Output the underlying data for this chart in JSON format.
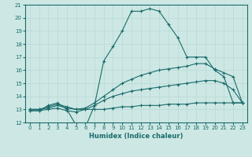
{
  "xlabel": "Humidex (Indice chaleur)",
  "xlim": [
    -0.5,
    23.5
  ],
  "ylim": [
    12,
    21
  ],
  "yticks": [
    12,
    13,
    14,
    15,
    16,
    17,
    18,
    19,
    20,
    21
  ],
  "xticks": [
    0,
    1,
    2,
    3,
    4,
    5,
    6,
    7,
    8,
    9,
    10,
    11,
    12,
    13,
    14,
    15,
    16,
    17,
    18,
    19,
    20,
    21,
    22,
    23
  ],
  "bg_color": "#cde8e4",
  "line_color": "#1a6b6b",
  "grid_color": "#b8d8d4",
  "lines": [
    {
      "x": [
        0,
        1,
        2,
        3,
        4,
        5,
        6,
        7,
        8,
        9,
        10,
        11,
        12,
        13,
        14,
        15,
        16,
        17,
        18,
        19,
        20,
        21,
        22,
        23
      ],
      "y": [
        12.9,
        12.9,
        13.3,
        13.5,
        13.0,
        11.8,
        11.6,
        13.3,
        16.7,
        17.8,
        19.0,
        20.5,
        20.5,
        20.7,
        20.5,
        19.5,
        18.5,
        17.0,
        17.0,
        17.0,
        16.0,
        15.5,
        13.5,
        13.5
      ],
      "marker": "+"
    },
    {
      "x": [
        0,
        1,
        2,
        3,
        4,
        5,
        6,
        7,
        8,
        9,
        10,
        11,
        12,
        13,
        14,
        15,
        16,
        17,
        18,
        19,
        20,
        21,
        22,
        23
      ],
      "y": [
        13.0,
        13.0,
        13.2,
        13.4,
        13.2,
        13.0,
        13.1,
        13.5,
        14.0,
        14.5,
        15.0,
        15.3,
        15.6,
        15.8,
        16.0,
        16.1,
        16.2,
        16.3,
        16.5,
        16.5,
        16.1,
        15.8,
        15.5,
        13.5
      ],
      "marker": "+"
    },
    {
      "x": [
        0,
        1,
        2,
        3,
        4,
        5,
        6,
        7,
        8,
        9,
        10,
        11,
        12,
        13,
        14,
        15,
        16,
        17,
        18,
        19,
        20,
        21,
        22,
        23
      ],
      "y": [
        13.0,
        13.0,
        13.1,
        13.3,
        13.1,
        13.0,
        13.0,
        13.3,
        13.7,
        14.0,
        14.2,
        14.4,
        14.5,
        14.6,
        14.7,
        14.8,
        14.9,
        15.0,
        15.1,
        15.2,
        15.2,
        15.0,
        14.5,
        13.5
      ],
      "marker": "+"
    },
    {
      "x": [
        0,
        1,
        2,
        3,
        4,
        5,
        6,
        7,
        8,
        9,
        10,
        11,
        12,
        13,
        14,
        15,
        16,
        17,
        18,
        19,
        20,
        21,
        22,
        23
      ],
      "y": [
        12.9,
        12.9,
        13.0,
        13.1,
        12.9,
        12.8,
        13.0,
        13.0,
        13.0,
        13.1,
        13.2,
        13.2,
        13.3,
        13.3,
        13.3,
        13.4,
        13.4,
        13.4,
        13.5,
        13.5,
        13.5,
        13.5,
        13.5,
        13.5
      ],
      "marker": "+"
    }
  ]
}
